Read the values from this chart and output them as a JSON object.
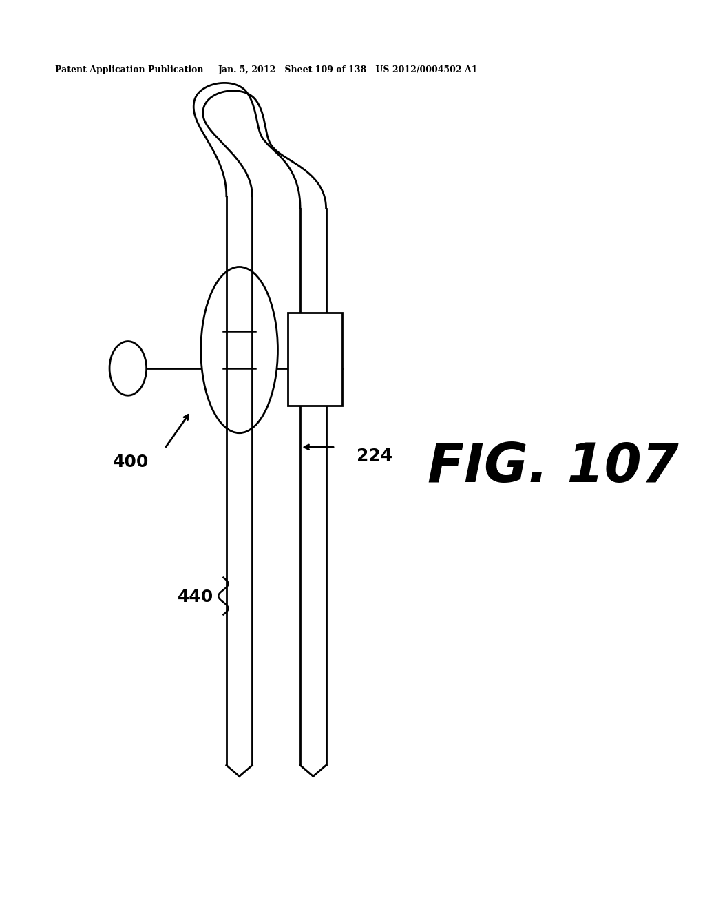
{
  "title_left": "Patent Application Publication",
  "title_right": "Jan. 5, 2012   Sheet 109 of 138   US 2012/0004502 A1",
  "fig_label": "FIG. 107",
  "label_400": "400",
  "label_224": "224",
  "label_440": "440",
  "bg_color": "#ffffff",
  "line_color": "#000000",
  "line_width": 2.0
}
